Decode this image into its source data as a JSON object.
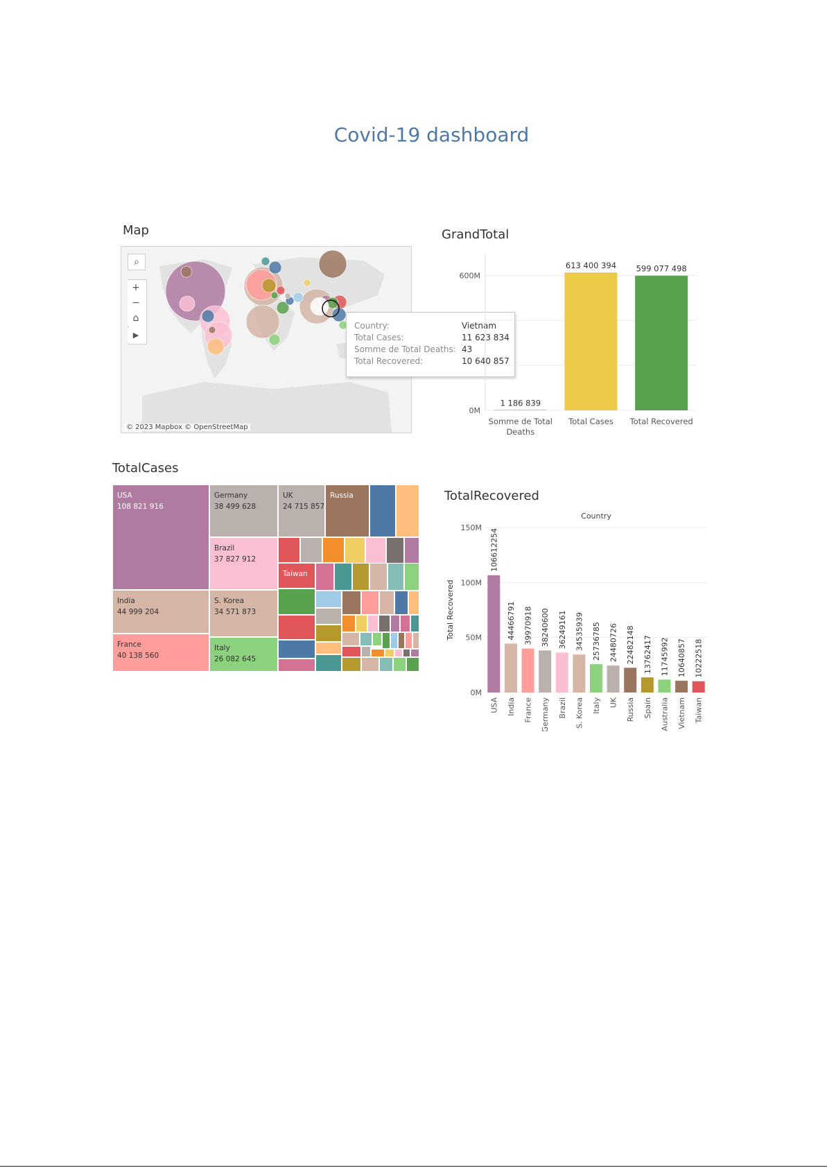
{
  "dashboard": {
    "title": "Covid-19 dashboard"
  },
  "map": {
    "title": "Map",
    "attribution": "© 2023 Mapbox  © OpenStreetMap",
    "controls": [
      {
        "icon": "search-icon",
        "glyph": "⌕"
      },
      {
        "icon": "zoom-in-icon",
        "glyph": "+"
      },
      {
        "icon": "zoom-out-icon",
        "glyph": "−"
      },
      {
        "icon": "home-icon",
        "glyph": "⌂"
      },
      {
        "icon": "play-icon",
        "glyph": "▶"
      }
    ],
    "tooltip": {
      "rows": [
        {
          "key": "Country:",
          "value": "Vietnam"
        },
        {
          "key": "Total Cases:",
          "value": "11 623 834"
        },
        {
          "key": "Somme de Total Deaths:",
          "value": "43"
        },
        {
          "key": "Total Recovered:",
          "value": "10 640 857"
        }
      ]
    }
  },
  "grand_total": {
    "title": "GrandTotal"
  },
  "total_cases": {
    "title": "TotalCases",
    "labeled_cells": [
      {
        "name": "USA",
        "value": "108 821 916",
        "color": "#b07aa1",
        "text_color": "#ffffff"
      },
      {
        "name": "Germany",
        "value": "38 499 628",
        "color": "#bab0ac",
        "text_color": "#333333"
      },
      {
        "name": "UK",
        "value": "24 715 857",
        "color": "#bab0ac",
        "text_color": "#333333"
      },
      {
        "name": "Russia",
        "value": "",
        "color": "#9c755f",
        "text_color": "#ffffff"
      },
      {
        "name": "Brazil",
        "value": "37 827 912",
        "color": "#fabfd2",
        "text_color": "#333333"
      },
      {
        "name": "Taiwan",
        "value": "",
        "color": "#e15759",
        "text_color": "#ffffff"
      },
      {
        "name": "India",
        "value": "44 999 204",
        "color": "#d4b5a6",
        "text_color": "#333333"
      },
      {
        "name": "S. Korea",
        "value": "34 571 873",
        "color": "#d4b5a6",
        "text_color": "#333333"
      },
      {
        "name": "France",
        "value": "40 138 560",
        "color": "#ff9d9a",
        "text_color": "#333333"
      },
      {
        "name": "Italy",
        "value": "26 082 645",
        "color": "#8cd17d",
        "text_color": "#333333"
      }
    ]
  },
  "total_recovered": {
    "title": "TotalRecovered"
  },
  "chart_data": [
    {
      "type": "bar",
      "title": "GrandTotal",
      "categories": [
        "Somme de Total Deaths",
        "Total Cases",
        "Total Recovered"
      ],
      "category_labels": [
        [
          "Somme de Total",
          "Deaths"
        ],
        [
          "Total Cases"
        ],
        [
          "Total Recovered"
        ]
      ],
      "values": [
        1186839,
        613400394,
        599077498
      ],
      "data_labels": [
        "1 186 839",
        "613 400 394",
        "599 077 498"
      ],
      "colors": [
        "#4e79a7",
        "#edc948",
        "#59a14f"
      ],
      "ylim": [
        0,
        700000000
      ],
      "yticks": [
        0,
        600000000
      ],
      "ytick_labels": [
        "0M",
        "600M"
      ],
      "grid": true
    },
    {
      "type": "bar",
      "title": "TotalRecovered",
      "column_header": "Country",
      "xlabel": "",
      "ylabel": "Total Recovered",
      "categories": [
        "USA",
        "India",
        "France",
        "Germany",
        "Brazil",
        "S. Korea",
        "Italy",
        "UK",
        "Russia",
        "Spain",
        "Australia",
        "Vietnam",
        "Taiwan"
      ],
      "values": [
        106612254,
        44466791,
        39970918,
        38240600,
        36249161,
        34535939,
        25736785,
        24480726,
        22482148,
        13762417,
        11745992,
        10640857,
        10222518
      ],
      "data_labels": [
        "106612254",
        "44466791",
        "39970918",
        "38240600",
        "36249161",
        "34535939",
        "25736785",
        "24480726",
        "22482148",
        "13762417",
        "11745992",
        "10640857",
        "10222518"
      ],
      "colors": [
        "#b07aa1",
        "#d4b5a6",
        "#ff9d9a",
        "#bab0ac",
        "#fabfd2",
        "#d4b5a6",
        "#8cd17d",
        "#bab0ac",
        "#9c755f",
        "#b6992d",
        "#8cd17d",
        "#9c755f",
        "#e15759"
      ],
      "ylim": [
        0,
        150000000
      ],
      "yticks": [
        0,
        50000000,
        100000000,
        150000000
      ],
      "ytick_labels": [
        "0M",
        "50M",
        "100M",
        "150M"
      ],
      "grid": true
    }
  ]
}
